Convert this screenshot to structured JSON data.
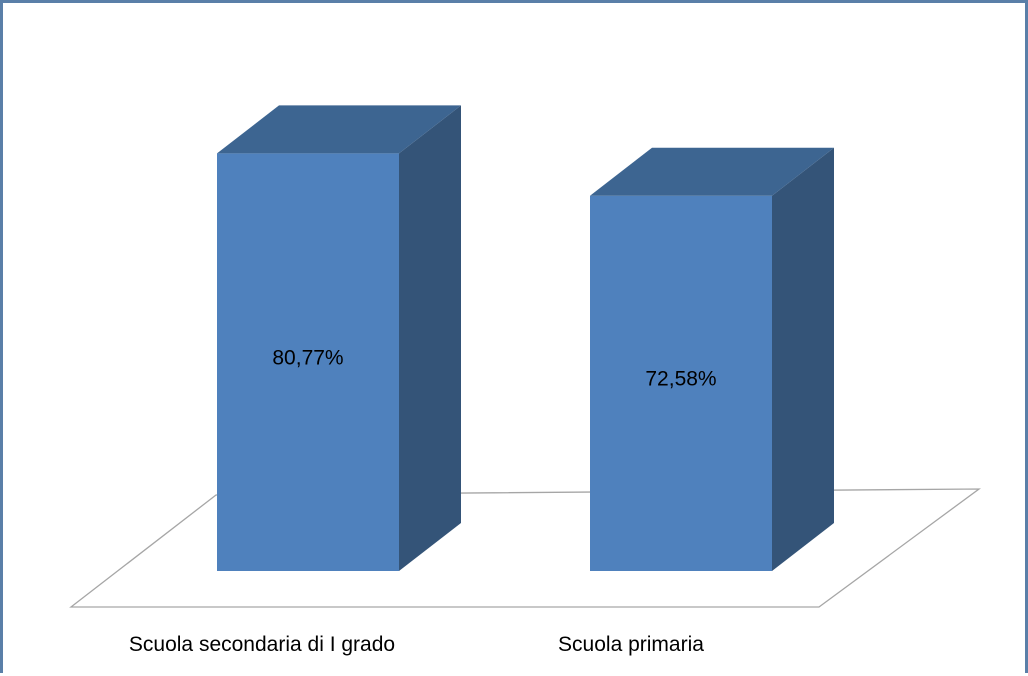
{
  "chart_data": {
    "type": "bar",
    "style": "3d-column",
    "categories": [
      "Scuola secondaria di I grado",
      "Scuola primaria"
    ],
    "values": [
      80.77,
      72.58
    ],
    "value_labels": [
      "80,77%",
      "72,58%"
    ],
    "ylim": [
      0,
      90
    ],
    "grid": false,
    "legend": "none",
    "colors": {
      "front": "#4f81bd",
      "top": "#3d6591",
      "side": "#345478",
      "floor_stroke": "#a6a6a6",
      "frame": "#5a7fa8"
    }
  }
}
